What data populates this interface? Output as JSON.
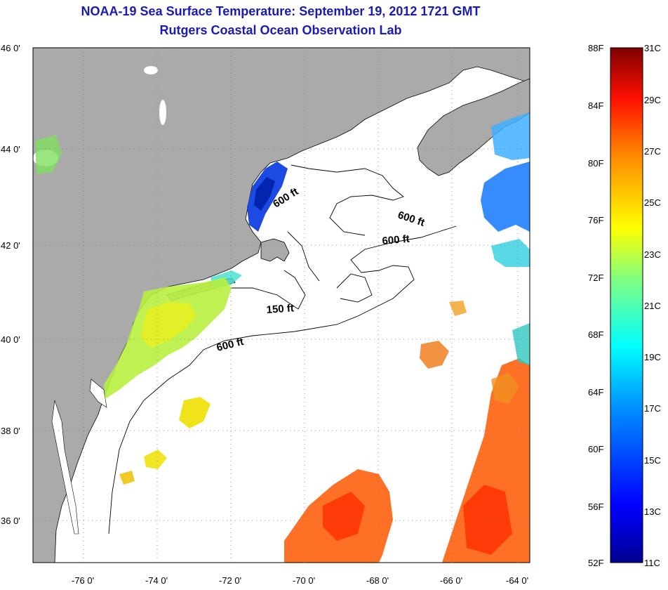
{
  "header": {
    "title": "NOAA-19 Sea Surface Temperature:  September 19, 2012 1721 GMT",
    "subtitle": "Rutgers Coastal Ocean Observation Lab"
  },
  "map": {
    "lat_ticks": [
      "46 0'",
      "44 0'",
      "42 0'",
      "40 0'",
      "38 0'",
      "36 0'"
    ],
    "lon_ticks": [
      "-76 0'",
      "-74 0'",
      "-72 0'",
      "-70 0'",
      "-68 0'",
      "-66 0'",
      "-64 0'"
    ],
    "contour_labels": [
      "600 ft",
      "600 ft",
      "600 ft",
      "150 ft",
      "600 ft"
    ],
    "land_color": "#aaaaaa",
    "water_color": "#ffffff"
  },
  "colorbar": {
    "fahrenheit_labels": [
      "88F",
      "84F",
      "80F",
      "76F",
      "72F",
      "68F",
      "64F",
      "60F",
      "56F",
      "52F"
    ],
    "celsius_labels": [
      "31C",
      "29C",
      "27C",
      "25C",
      "23C",
      "21C",
      "19C",
      "17C",
      "15C",
      "13C",
      "11C"
    ],
    "colors": [
      "#00008f",
      "#0000ff",
      "#0080ff",
      "#00ffff",
      "#80ff80",
      "#ffff00",
      "#ff8000",
      "#ff0000",
      "#800000"
    ]
  }
}
